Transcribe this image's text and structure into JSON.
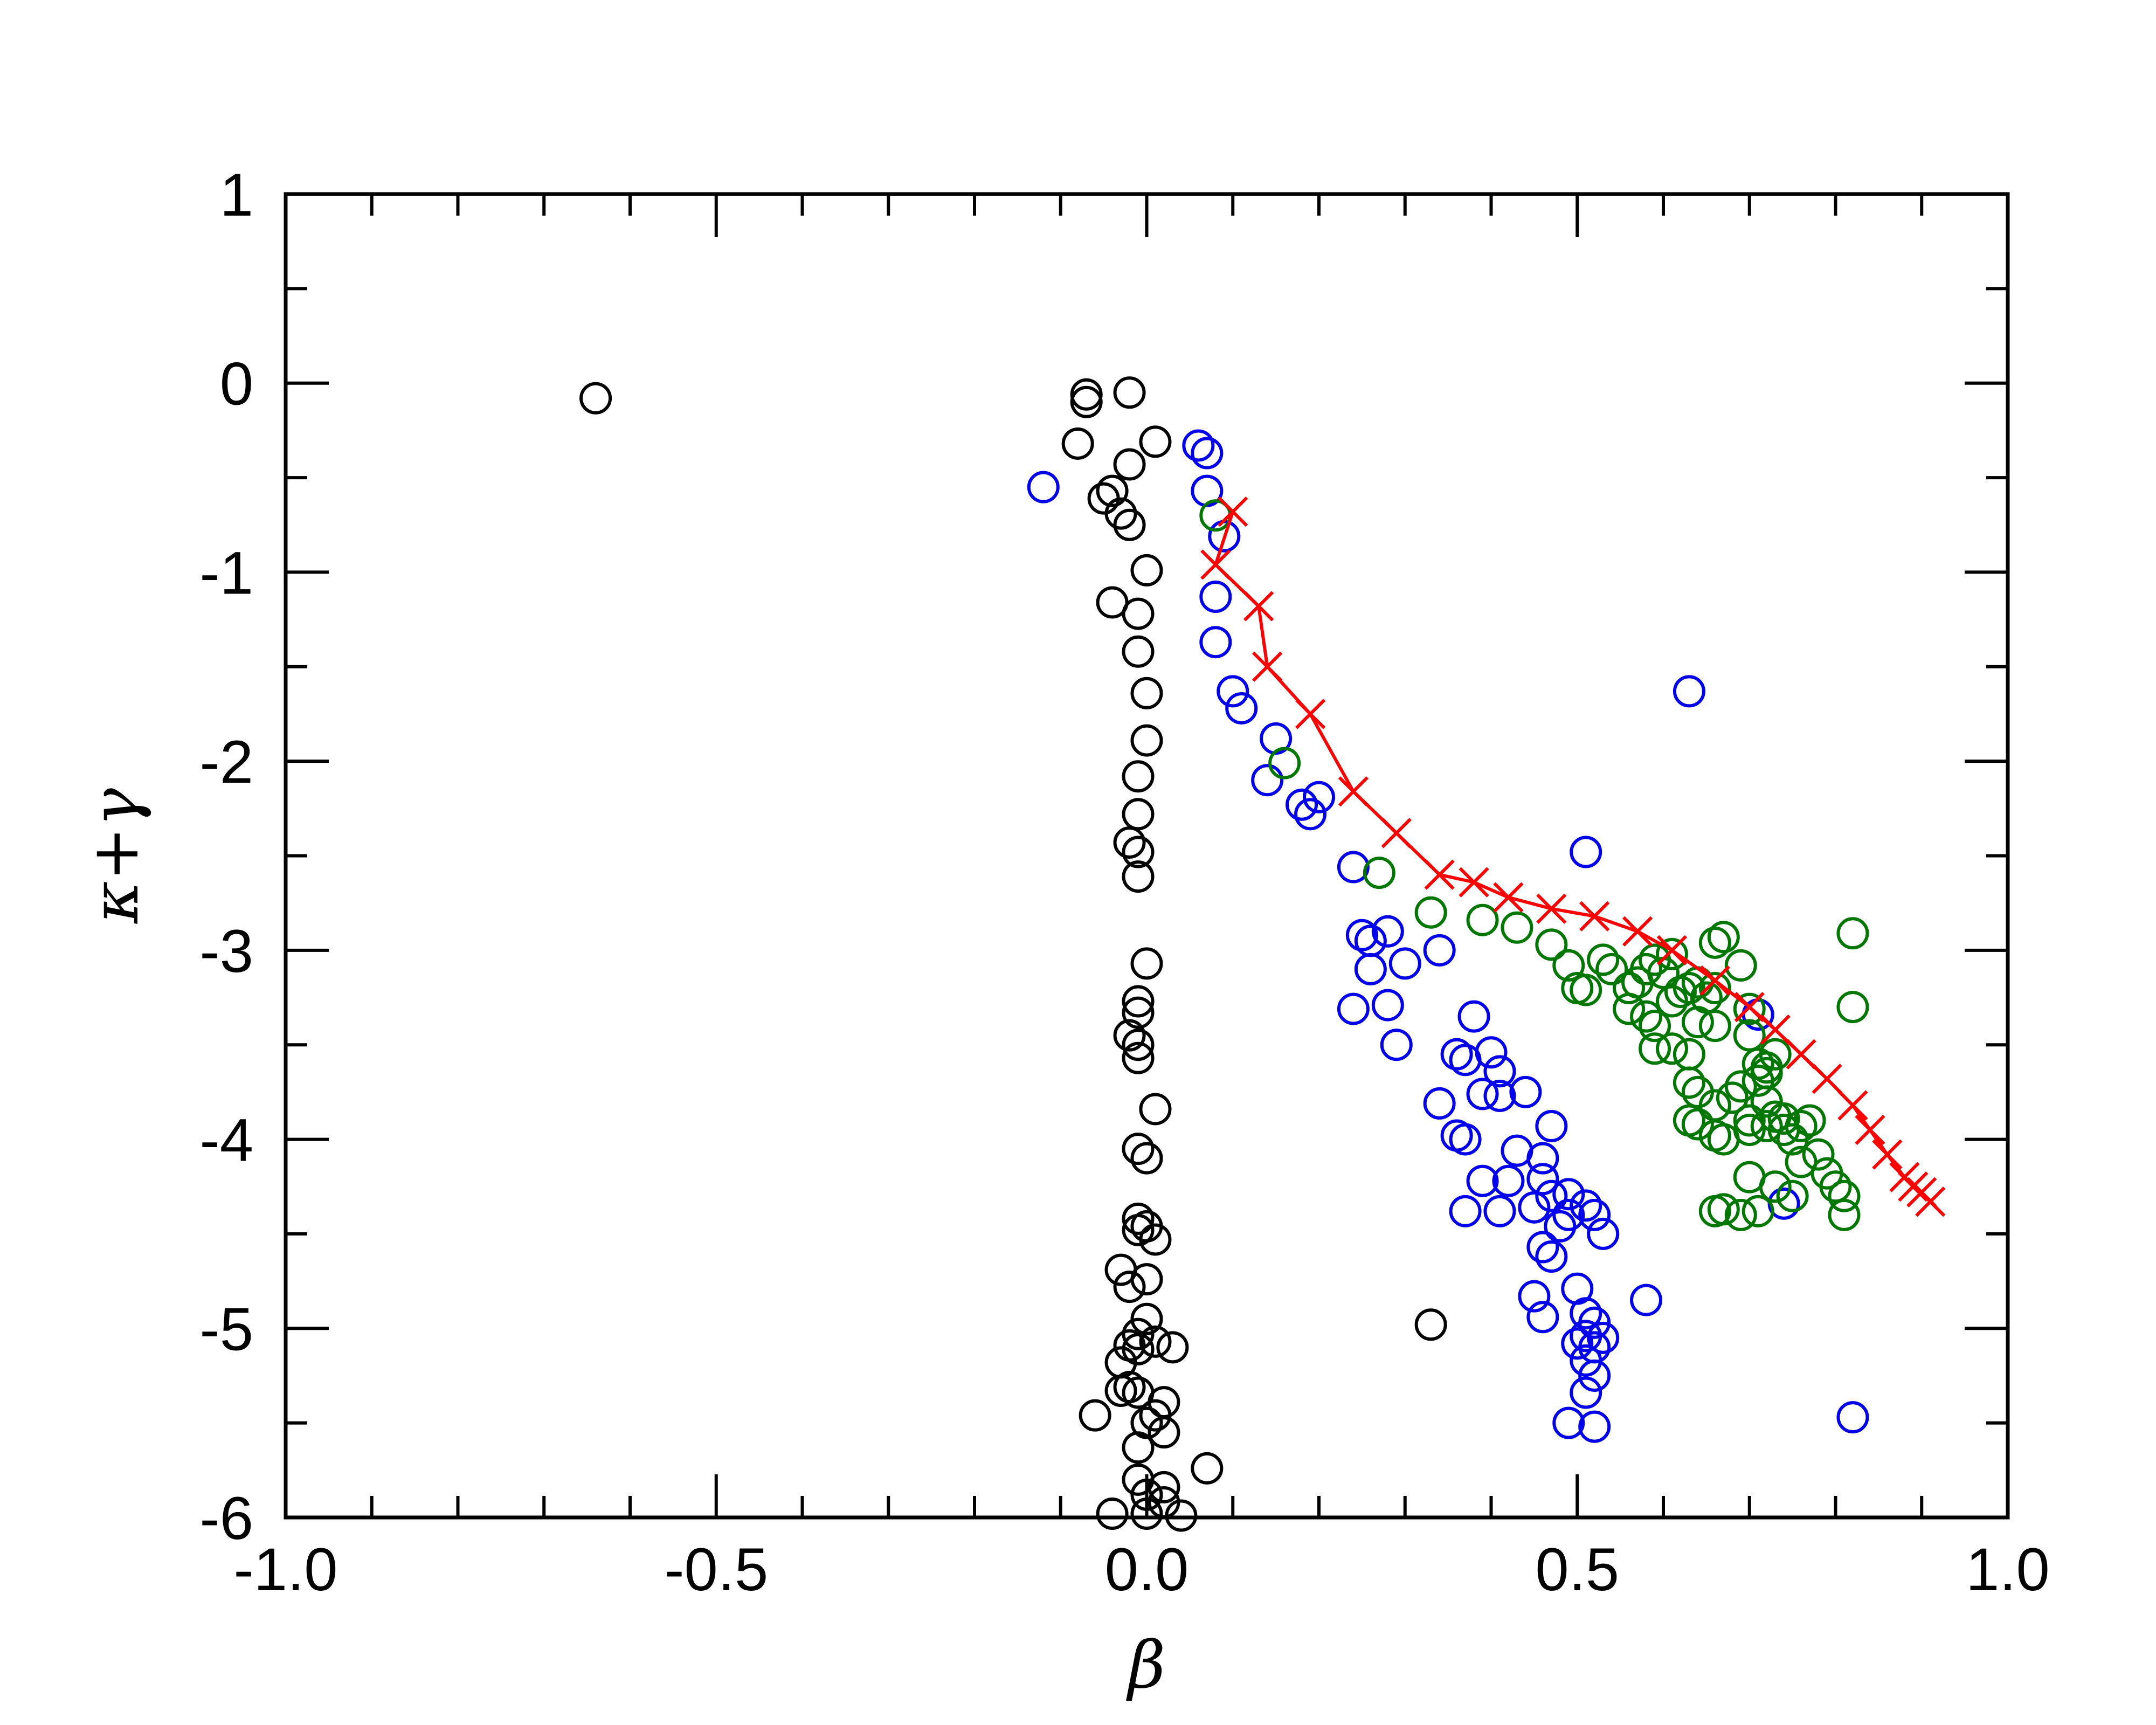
{
  "chart_data": {
    "type": "scatter",
    "title": "",
    "xlabel": "β",
    "ylabel": "κ+γ",
    "xlim": [
      -1.0,
      1.0
    ],
    "ylim": [
      -6,
      1
    ],
    "xticks": [
      -1.0,
      -0.5,
      0.0,
      0.5,
      1.0
    ],
    "xtick_labels": [
      "-1.0",
      "-0.5",
      "0.0",
      "0.5",
      "1.0"
    ],
    "yticks": [
      -6,
      -5,
      -4,
      -3,
      -2,
      -1,
      0,
      1
    ],
    "ytick_labels": [
      "-6",
      "-5",
      "-4",
      "-3",
      "-2",
      "-1",
      "0",
      "1"
    ],
    "grid": false,
    "legend": "none",
    "series": [
      {
        "color": "#000000",
        "marker": "circle",
        "points": [
          [
            -0.64,
            -0.08
          ],
          [
            -0.07,
            -0.06
          ],
          [
            -0.07,
            -0.1
          ],
          [
            -0.02,
            -0.05
          ],
          [
            0.01,
            -0.31
          ],
          [
            -0.08,
            -0.32
          ],
          [
            -0.02,
            -0.43
          ],
          [
            -0.04,
            -0.57
          ],
          [
            -0.05,
            -0.61
          ],
          [
            -0.03,
            -0.69
          ],
          [
            -0.02,
            -0.75
          ],
          [
            0.0,
            -0.99
          ],
          [
            -0.04,
            -1.16
          ],
          [
            -0.01,
            -1.22
          ],
          [
            -0.01,
            -1.42
          ],
          [
            0.0,
            -1.64
          ],
          [
            0.0,
            -1.89
          ],
          [
            -0.01,
            -2.08
          ],
          [
            -0.01,
            -2.28
          ],
          [
            -0.02,
            -2.43
          ],
          [
            -0.01,
            -2.48
          ],
          [
            -0.01,
            -2.61
          ],
          [
            0.0,
            -3.07
          ],
          [
            -0.01,
            -3.27
          ],
          [
            -0.01,
            -3.33
          ],
          [
            -0.02,
            -3.45
          ],
          [
            -0.01,
            -3.5
          ],
          [
            -0.01,
            -3.57
          ],
          [
            0.01,
            -3.84
          ],
          [
            -0.01,
            -4.05
          ],
          [
            0.0,
            -4.1
          ],
          [
            -0.01,
            -4.42
          ],
          [
            0.0,
            -4.46
          ],
          [
            -0.01,
            -4.48
          ],
          [
            0.01,
            -4.53
          ],
          [
            -0.03,
            -4.69
          ],
          [
            0.0,
            -4.74
          ],
          [
            -0.02,
            -4.78
          ],
          [
            0.0,
            -4.95
          ],
          [
            -0.01,
            -5.03
          ],
          [
            0.01,
            -5.07
          ],
          [
            -0.02,
            -5.09
          ],
          [
            -0.01,
            -5.11
          ],
          [
            0.03,
            -5.1
          ],
          [
            -0.03,
            -5.18
          ],
          [
            -0.02,
            -5.31
          ],
          [
            -0.03,
            -5.33
          ],
          [
            -0.01,
            -5.34
          ],
          [
            0.02,
            -5.39
          ],
          [
            -0.06,
            -5.46
          ],
          [
            0.01,
            -5.46
          ],
          [
            0.0,
            -5.5
          ],
          [
            0.02,
            -5.55
          ],
          [
            -0.01,
            -5.63
          ],
          [
            0.07,
            -5.74
          ],
          [
            -0.01,
            -5.8
          ],
          [
            0.02,
            -5.84
          ],
          [
            0.0,
            -5.88
          ],
          [
            0.02,
            -5.92
          ],
          [
            -0.04,
            -5.98
          ],
          [
            0.0,
            -5.98
          ],
          [
            0.04,
            -5.99
          ],
          [
            0.33,
            -4.98
          ]
        ]
      },
      {
        "color": "#0000ee",
        "marker": "circle",
        "points": [
          [
            -0.12,
            -0.55
          ],
          [
            0.06,
            -0.33
          ],
          [
            0.07,
            -0.37
          ],
          [
            0.07,
            -0.57
          ],
          [
            0.09,
            -0.81
          ],
          [
            0.08,
            -1.13
          ],
          [
            0.08,
            -1.37
          ],
          [
            0.1,
            -1.63
          ],
          [
            0.11,
            -1.72
          ],
          [
            0.15,
            -1.88
          ],
          [
            0.14,
            -2.1
          ],
          [
            0.18,
            -2.23
          ],
          [
            0.19,
            -2.28
          ],
          [
            0.2,
            -2.19
          ],
          [
            0.24,
            -2.56
          ],
          [
            0.25,
            -2.92
          ],
          [
            0.26,
            -2.95
          ],
          [
            0.28,
            -2.9
          ],
          [
            0.26,
            -3.1
          ],
          [
            0.3,
            -3.07
          ],
          [
            0.34,
            -3.0
          ],
          [
            0.28,
            -3.29
          ],
          [
            0.24,
            -3.31
          ],
          [
            0.29,
            -3.5
          ],
          [
            0.38,
            -3.35
          ],
          [
            0.36,
            -3.55
          ],
          [
            0.37,
            -3.58
          ],
          [
            0.4,
            -3.54
          ],
          [
            0.41,
            -3.64
          ],
          [
            0.39,
            -3.76
          ],
          [
            0.41,
            -3.77
          ],
          [
            0.44,
            -3.75
          ],
          [
            0.34,
            -3.81
          ],
          [
            0.36,
            -3.98
          ],
          [
            0.37,
            -4.0
          ],
          [
            0.47,
            -3.93
          ],
          [
            0.43,
            -4.06
          ],
          [
            0.39,
            -4.22
          ],
          [
            0.42,
            -4.22
          ],
          [
            0.46,
            -4.1
          ],
          [
            0.46,
            -4.21
          ],
          [
            0.37,
            -4.38
          ],
          [
            0.41,
            -4.38
          ],
          [
            0.45,
            -4.36
          ],
          [
            0.47,
            -4.3
          ],
          [
            0.49,
            -4.29
          ],
          [
            0.51,
            -4.35
          ],
          [
            0.49,
            -4.4
          ],
          [
            0.48,
            -4.46
          ],
          [
            0.52,
            -4.4
          ],
          [
            0.53,
            -4.5
          ],
          [
            0.46,
            -4.57
          ],
          [
            0.47,
            -4.62
          ],
          [
            0.45,
            -4.83
          ],
          [
            0.46,
            -4.94
          ],
          [
            0.5,
            -4.79
          ],
          [
            0.51,
            -4.92
          ],
          [
            0.52,
            -4.97
          ],
          [
            0.51,
            -5.04
          ],
          [
            0.53,
            -5.05
          ],
          [
            0.5,
            -5.08
          ],
          [
            0.52,
            -5.1
          ],
          [
            0.51,
            -5.17
          ],
          [
            0.52,
            -5.25
          ],
          [
            0.51,
            -5.34
          ],
          [
            0.49,
            -5.5
          ],
          [
            0.52,
            -5.52
          ],
          [
            0.58,
            -4.85
          ],
          [
            0.51,
            -2.48
          ],
          [
            0.63,
            -1.63
          ],
          [
            0.71,
            -3.34
          ],
          [
            0.74,
            -4.34
          ],
          [
            0.82,
            -5.47
          ]
        ]
      },
      {
        "color": "#007700",
        "marker": "circle",
        "points": [
          [
            0.08,
            -0.7
          ],
          [
            0.16,
            -2.01
          ],
          [
            0.27,
            -2.59
          ],
          [
            0.33,
            -2.8
          ],
          [
            0.39,
            -2.84
          ],
          [
            0.43,
            -2.88
          ],
          [
            0.47,
            -2.97
          ],
          [
            0.49,
            -3.08
          ],
          [
            0.5,
            -3.2
          ],
          [
            0.51,
            -3.21
          ],
          [
            0.53,
            -3.05
          ],
          [
            0.54,
            -3.1
          ],
          [
            0.56,
            -3.2
          ],
          [
            0.57,
            -3.17
          ],
          [
            0.58,
            -3.1
          ],
          [
            0.59,
            -3.05
          ],
          [
            0.6,
            -3.12
          ],
          [
            0.61,
            -3.02
          ],
          [
            0.56,
            -3.31
          ],
          [
            0.58,
            -3.35
          ],
          [
            0.59,
            -3.4
          ],
          [
            0.61,
            -3.27
          ],
          [
            0.62,
            -3.22
          ],
          [
            0.63,
            -3.2
          ],
          [
            0.64,
            -3.17
          ],
          [
            0.65,
            -3.25
          ],
          [
            0.66,
            -3.2
          ],
          [
            0.66,
            -2.96
          ],
          [
            0.67,
            -2.93
          ],
          [
            0.69,
            -3.08
          ],
          [
            0.59,
            -3.52
          ],
          [
            0.61,
            -3.52
          ],
          [
            0.63,
            -3.55
          ],
          [
            0.64,
            -3.38
          ],
          [
            0.66,
            -3.4
          ],
          [
            0.7,
            -3.31
          ],
          [
            0.7,
            -3.45
          ],
          [
            0.71,
            -3.6
          ],
          [
            0.72,
            -3.65
          ],
          [
            0.73,
            -3.55
          ],
          [
            0.63,
            -3.7
          ],
          [
            0.64,
            -3.75
          ],
          [
            0.66,
            -3.82
          ],
          [
            0.68,
            -3.78
          ],
          [
            0.69,
            -3.72
          ],
          [
            0.71,
            -3.69
          ],
          [
            0.72,
            -3.8
          ],
          [
            0.7,
            -3.9
          ],
          [
            0.63,
            -3.9
          ],
          [
            0.64,
            -3.92
          ],
          [
            0.66,
            -3.98
          ],
          [
            0.67,
            -4.0
          ],
          [
            0.7,
            -3.95
          ],
          [
            0.72,
            -3.93
          ],
          [
            0.73,
            -3.88
          ],
          [
            0.74,
            -3.95
          ],
          [
            0.75,
            -4.0
          ],
          [
            0.76,
            -3.93
          ],
          [
            0.77,
            -3.9
          ],
          [
            0.78,
            -4.08
          ],
          [
            0.79,
            -4.18
          ],
          [
            0.8,
            -4.25
          ],
          [
            0.81,
            -4.3
          ],
          [
            0.81,
            -4.4
          ],
          [
            0.75,
            -4.3
          ],
          [
            0.73,
            -4.25
          ],
          [
            0.71,
            -4.38
          ],
          [
            0.69,
            -4.4
          ],
          [
            0.67,
            -4.37
          ],
          [
            0.66,
            -4.38
          ],
          [
            0.7,
            -4.2
          ],
          [
            0.82,
            -2.91
          ],
          [
            0.82,
            -3.3
          ],
          [
            0.72,
            -3.62
          ],
          [
            0.74,
            -3.89
          ],
          [
            0.76,
            -4.12
          ]
        ]
      },
      {
        "color": "#ff0000",
        "marker": "x",
        "line": true,
        "points": [
          [
            0.1,
            -0.68
          ],
          [
            0.08,
            -0.96
          ],
          [
            0.13,
            -1.18
          ],
          [
            0.14,
            -1.5
          ],
          [
            0.19,
            -1.75
          ],
          [
            0.24,
            -2.16
          ],
          [
            0.29,
            -2.38
          ],
          [
            0.34,
            -2.6
          ],
          [
            0.38,
            -2.64
          ],
          [
            0.42,
            -2.72
          ],
          [
            0.47,
            -2.78
          ],
          [
            0.52,
            -2.82
          ],
          [
            0.57,
            -2.9
          ],
          [
            0.61,
            -3.0
          ],
          [
            0.66,
            -3.16
          ],
          [
            0.7,
            -3.3
          ],
          [
            0.73,
            -3.42
          ],
          [
            0.76,
            -3.55
          ],
          [
            0.79,
            -3.68
          ],
          [
            0.82,
            -3.82
          ],
          [
            0.84,
            -3.95
          ],
          [
            0.86,
            -4.08
          ],
          [
            0.88,
            -4.2
          ],
          [
            0.89,
            -4.25
          ],
          [
            0.9,
            -4.28
          ],
          [
            0.91,
            -4.33
          ]
        ]
      }
    ]
  }
}
